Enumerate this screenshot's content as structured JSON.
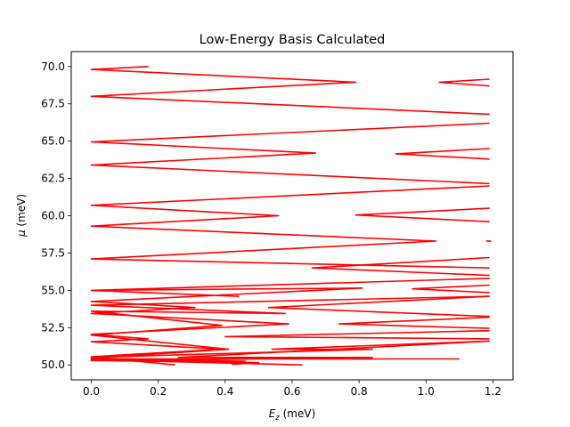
{
  "chart_data": {
    "type": "line",
    "title": "Low-Energy Basis Calculated",
    "xlabel": {
      "main": "E",
      "sub": "z",
      "unit": " (meV)"
    },
    "ylabel": {
      "main": "μ",
      "unit": " (meV)"
    },
    "xlim": [
      -0.06,
      1.26
    ],
    "ylim": [
      49.0,
      71.0
    ],
    "xticks": [
      0.0,
      0.2,
      0.4,
      0.6,
      0.8,
      1.0,
      1.2
    ],
    "xtick_labels": [
      "0.0",
      "0.2",
      "0.4",
      "0.6",
      "0.8",
      "1.0",
      "1.2"
    ],
    "yticks": [
      50.0,
      52.5,
      55.0,
      57.5,
      60.0,
      62.5,
      65.0,
      67.5,
      70.0
    ],
    "ytick_labels": [
      "50.0",
      "52.5",
      "55.0",
      "57.5",
      "60.0",
      "62.5",
      "65.0",
      "67.5",
      "70.0"
    ],
    "grid": false,
    "series": [
      {
        "color": "#ff0000",
        "x": [
          0.17,
          0.0,
          0.79,
          0.0,
          1.19
        ],
        "y": [
          70.0,
          69.8,
          68.95,
          68.0,
          66.8
        ]
      },
      {
        "color": "#ff0000",
        "x": [
          1.19,
          1.04,
          1.19
        ],
        "y": [
          69.15,
          68.95,
          68.7
        ]
      },
      {
        "color": "#ff0000",
        "x": [
          1.19,
          0.0,
          0.67,
          0.0,
          1.19
        ],
        "y": [
          66.2,
          64.95,
          64.2,
          63.4,
          62.15
        ]
      },
      {
        "color": "#ff0000",
        "x": [
          1.19,
          0.91,
          1.19
        ],
        "y": [
          64.5,
          64.15,
          63.8
        ]
      },
      {
        "color": "#ff0000",
        "x": [
          1.19,
          0.0,
          0.56,
          0.0,
          1.03,
          0.0,
          1.19
        ],
        "y": [
          62.0,
          60.7,
          60.0,
          59.3,
          58.3,
          57.1,
          56.5
        ]
      },
      {
        "color": "#ff0000",
        "x": [
          1.19,
          0.79,
          1.19
        ],
        "y": [
          60.5,
          60.05,
          59.6
        ]
      },
      {
        "color": "#ff0000",
        "x": [
          1.18,
          1.195
        ],
        "y": [
          58.3,
          58.3
        ]
      },
      {
        "color": "#ff0000",
        "x": [
          1.19,
          0.66,
          1.19
        ],
        "y": [
          57.2,
          56.5,
          56.0
        ]
      },
      {
        "color": "#ff0000",
        "x": [
          1.19,
          0.0,
          0.44,
          0.0,
          0.81,
          0.0,
          0.31,
          0.0,
          0.59,
          0.0,
          0.17,
          0.0,
          0.39,
          0.0,
          0.25
        ],
        "y": [
          55.8,
          55.0,
          54.6,
          55.0,
          55.15,
          54.25,
          53.85,
          53.45,
          52.75,
          52.05,
          51.75,
          51.55,
          51.05,
          50.55,
          50.0
        ]
      },
      {
        "color": "#ff0000",
        "x": [
          1.19,
          0.96,
          1.19
        ],
        "y": [
          55.35,
          55.1,
          54.85
        ]
      },
      {
        "color": "#ff0000",
        "x": [
          1.19,
          0.0,
          0.58,
          0.0,
          0.39,
          0.0,
          0.41,
          0.0,
          0.46,
          0.0,
          0.63
        ],
        "y": [
          54.6,
          54.0,
          53.45,
          53.6,
          52.65,
          52.0,
          51.05,
          50.45,
          50.25,
          50.35,
          50.0
        ]
      },
      {
        "color": "#ff0000",
        "x": [
          1.19,
          0.53,
          1.19
        ],
        "y": [
          54.6,
          53.85,
          53.25
        ]
      },
      {
        "color": "#ff0000",
        "x": [
          1.19,
          0.74,
          1.19
        ],
        "y": [
          53.2,
          52.75,
          52.45
        ]
      },
      {
        "color": "#ff0000",
        "x": [
          1.19,
          0.4,
          1.19
        ],
        "y": [
          52.3,
          51.9,
          51.75
        ]
      },
      {
        "color": "#ff0000",
        "x": [
          1.19,
          0.54,
          0.84,
          0.0,
          0.0,
          1.1
        ],
        "y": [
          51.6,
          51.05,
          51.05,
          50.5,
          50.4,
          50.4
        ]
      },
      {
        "color": "#ff0000",
        "x": [
          1.19,
          0.26,
          0.84,
          0.0,
          0.5,
          0.42
        ],
        "y": [
          51.6,
          50.5,
          50.5,
          50.3,
          50.15,
          50.05
        ]
      }
    ]
  }
}
